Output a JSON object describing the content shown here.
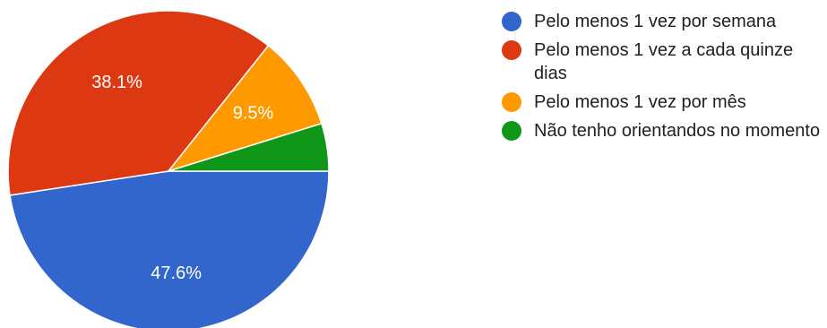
{
  "chart_data": {
    "type": "pie",
    "slices": [
      {
        "label": "Pelo menos 1 vez por semana",
        "value": 47.6,
        "value_label": "47.6%",
        "color": "#3366cc"
      },
      {
        "label": "Pelo menos 1 vez a cada quinze dias",
        "value": 38.1,
        "value_label": "38.1%",
        "color": "#dc3912"
      },
      {
        "label": "Pelo menos 1 vez por mês",
        "value": 9.5,
        "value_label": "9.5%",
        "color": "#ff9900"
      },
      {
        "label": "Não tenho orientandos no momento",
        "value": 4.8,
        "value_label": "",
        "color": "#109618"
      }
    ],
    "legend_position": "right"
  }
}
